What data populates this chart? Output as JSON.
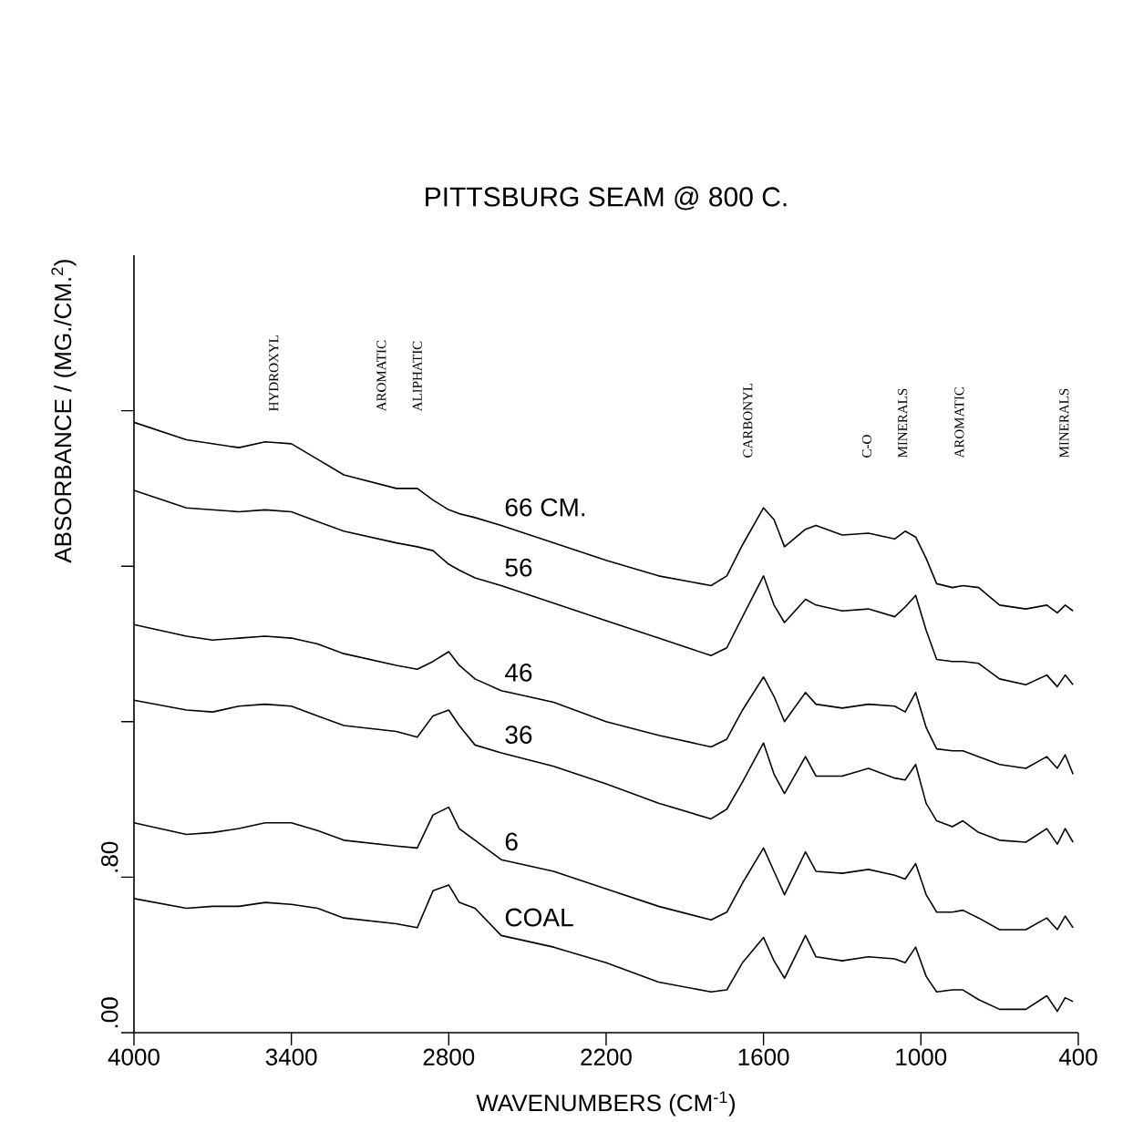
{
  "chart_data": {
    "type": "line",
    "title": "PITTSBURG SEAM @ 800 C.",
    "xlabel": "WAVENUMBERS (CM$^{-1}$)",
    "ylabel": "ABSORBANCE / (MG./CM.$^{2}$)",
    "x": [
      4000,
      3800,
      3700,
      3600,
      3500,
      3400,
      3300,
      3200,
      3000,
      2920,
      2860,
      2800,
      2760,
      2700,
      2600,
      2400,
      2200,
      2000,
      1800,
      1740,
      1680,
      1600,
      1560,
      1520,
      1440,
      1400,
      1300,
      1200,
      1100,
      1060,
      1020,
      980,
      940,
      880,
      840,
      780,
      700,
      600,
      520,
      480,
      450,
      420
    ],
    "series": [
      {
        "name": "66 CM.",
        "color": "#000000",
        "values": [
          3.14,
          3.05,
          3.03,
          3.01,
          3.04,
          3.03,
          2.95,
          2.87,
          2.8,
          2.8,
          2.74,
          2.69,
          2.67,
          2.65,
          2.61,
          2.52,
          2.43,
          2.35,
          2.3,
          2.35,
          2.51,
          2.7,
          2.64,
          2.5,
          2.59,
          2.61,
          2.56,
          2.57,
          2.54,
          2.58,
          2.55,
          2.44,
          2.31,
          2.29,
          2.3,
          2.29,
          2.2,
          2.18,
          2.2,
          2.16,
          2.2,
          2.17
        ]
      },
      {
        "name": "56",
        "color": "#000000",
        "values": [
          2.79,
          2.7,
          2.69,
          2.68,
          2.69,
          2.68,
          2.63,
          2.58,
          2.52,
          2.5,
          2.48,
          2.41,
          2.38,
          2.34,
          2.3,
          2.21,
          2.12,
          2.03,
          1.94,
          1.98,
          2.14,
          2.35,
          2.2,
          2.11,
          2.23,
          2.2,
          2.17,
          2.18,
          2.14,
          2.19,
          2.25,
          2.07,
          1.92,
          1.91,
          1.91,
          1.9,
          1.82,
          1.79,
          1.84,
          1.78,
          1.84,
          1.79
        ]
      },
      {
        "name": "46",
        "color": "#000000",
        "values": [
          2.1,
          2.04,
          2.02,
          2.03,
          2.04,
          2.03,
          2.0,
          1.95,
          1.89,
          1.87,
          1.91,
          1.96,
          1.89,
          1.82,
          1.76,
          1.7,
          1.6,
          1.53,
          1.47,
          1.51,
          1.66,
          1.83,
          1.73,
          1.6,
          1.75,
          1.69,
          1.67,
          1.69,
          1.68,
          1.65,
          1.75,
          1.57,
          1.46,
          1.45,
          1.45,
          1.42,
          1.38,
          1.36,
          1.42,
          1.36,
          1.43,
          1.33
        ]
      },
      {
        "name": "36",
        "color": "#000000",
        "values": [
          1.71,
          1.66,
          1.65,
          1.68,
          1.69,
          1.68,
          1.63,
          1.58,
          1.55,
          1.52,
          1.63,
          1.66,
          1.58,
          1.48,
          1.44,
          1.37,
          1.28,
          1.18,
          1.1,
          1.15,
          1.29,
          1.49,
          1.33,
          1.23,
          1.42,
          1.32,
          1.32,
          1.36,
          1.31,
          1.3,
          1.38,
          1.18,
          1.09,
          1.06,
          1.09,
          1.03,
          0.99,
          0.98,
          1.05,
          0.97,
          1.05,
          0.98
        ]
      },
      {
        "name": "6",
        "color": "#000000",
        "values": [
          1.08,
          1.02,
          1.03,
          1.05,
          1.08,
          1.08,
          1.04,
          0.99,
          0.96,
          0.95,
          1.12,
          1.16,
          1.05,
          0.99,
          0.89,
          0.83,
          0.74,
          0.65,
          0.58,
          0.62,
          0.77,
          0.95,
          0.83,
          0.71,
          0.93,
          0.83,
          0.82,
          0.84,
          0.81,
          0.79,
          0.87,
          0.71,
          0.62,
          0.62,
          0.63,
          0.59,
          0.53,
          0.53,
          0.59,
          0.53,
          0.6,
          0.54
        ]
      },
      {
        "name": "COAL",
        "color": "#000000",
        "values": [
          0.69,
          0.64,
          0.65,
          0.65,
          0.67,
          0.66,
          0.64,
          0.59,
          0.56,
          0.54,
          0.73,
          0.76,
          0.67,
          0.64,
          0.5,
          0.44,
          0.36,
          0.26,
          0.21,
          0.22,
          0.36,
          0.49,
          0.37,
          0.28,
          0.5,
          0.39,
          0.37,
          0.39,
          0.38,
          0.36,
          0.44,
          0.29,
          0.21,
          0.22,
          0.22,
          0.17,
          0.12,
          0.12,
          0.19,
          0.11,
          0.18,
          0.16
        ]
      }
    ],
    "xlim": [
      4000,
      400
    ],
    "xticks": [
      4000,
      3400,
      2800,
      2200,
      1600,
      1000,
      400
    ],
    "ylim": [
      0,
      4
    ],
    "yticks": [
      {
        "value": 0,
        "label": ".00"
      },
      {
        "value": 0.8,
        "label": ".80"
      },
      {
        "value": 1.6,
        "label": null
      },
      {
        "value": 2.4,
        "label": null
      },
      {
        "value": 3.2,
        "label": null
      }
    ],
    "marker": "none",
    "line_style": "solid",
    "legend": false,
    "annotations": [
      "HYDROXYL",
      "AROMATIC",
      "ALIPHATIC",
      "CARBONYL",
      "C-O",
      "MINERALS",
      "AROMATIC",
      "MINERALS"
    ]
  }
}
